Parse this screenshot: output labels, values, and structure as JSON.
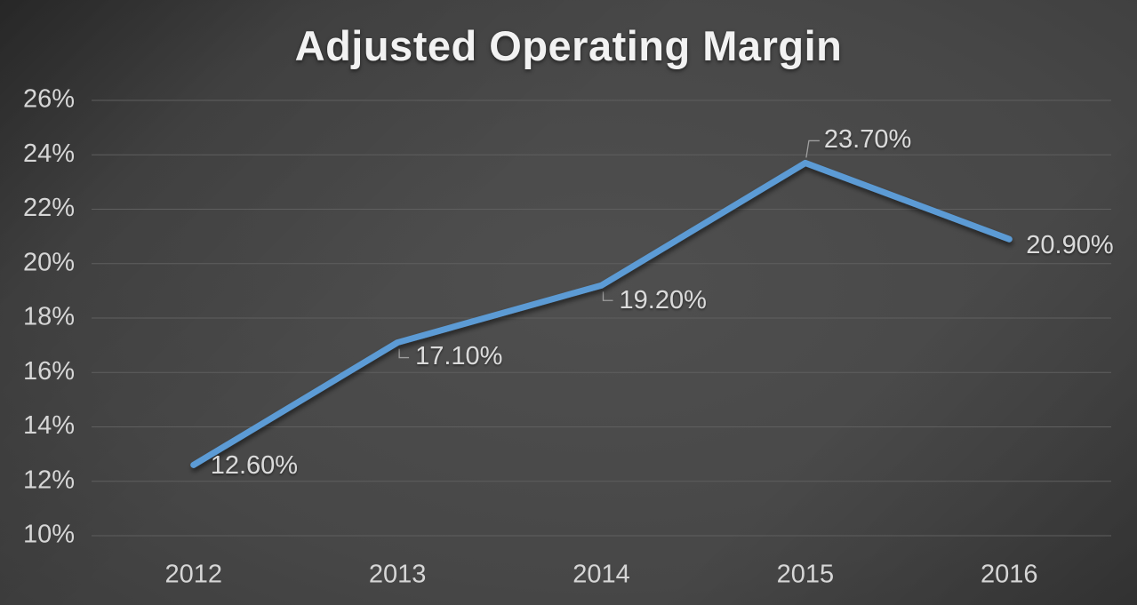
{
  "chart_data": {
    "type": "line",
    "title": "Adjusted Operating Margin",
    "categories": [
      "2012",
      "2013",
      "2014",
      "2015",
      "2016"
    ],
    "series": [
      {
        "name": "Adjusted Operating Margin",
        "values": [
          12.6,
          17.1,
          19.2,
          23.7,
          20.9
        ],
        "data_labels": [
          "12.60%",
          "17.10%",
          "19.20%",
          "23.70%",
          "20.90%"
        ]
      }
    ],
    "y_ticks": [
      "10%",
      "12%",
      "14%",
      "16%",
      "18%",
      "20%",
      "22%",
      "24%",
      "26%"
    ],
    "ylim": [
      10,
      26
    ],
    "grid": true,
    "legend": "none",
    "colors": {
      "line": "#5b9bd5",
      "gridline": "#5f5f5f",
      "axis_text": "#d6d6d6",
      "data_label_text": "#dadada",
      "leader_line": "#9f9f9f",
      "title_text": "#f2f2f2",
      "background_center": "#4f4f4f",
      "background_edge": "#1e1e1e"
    }
  }
}
